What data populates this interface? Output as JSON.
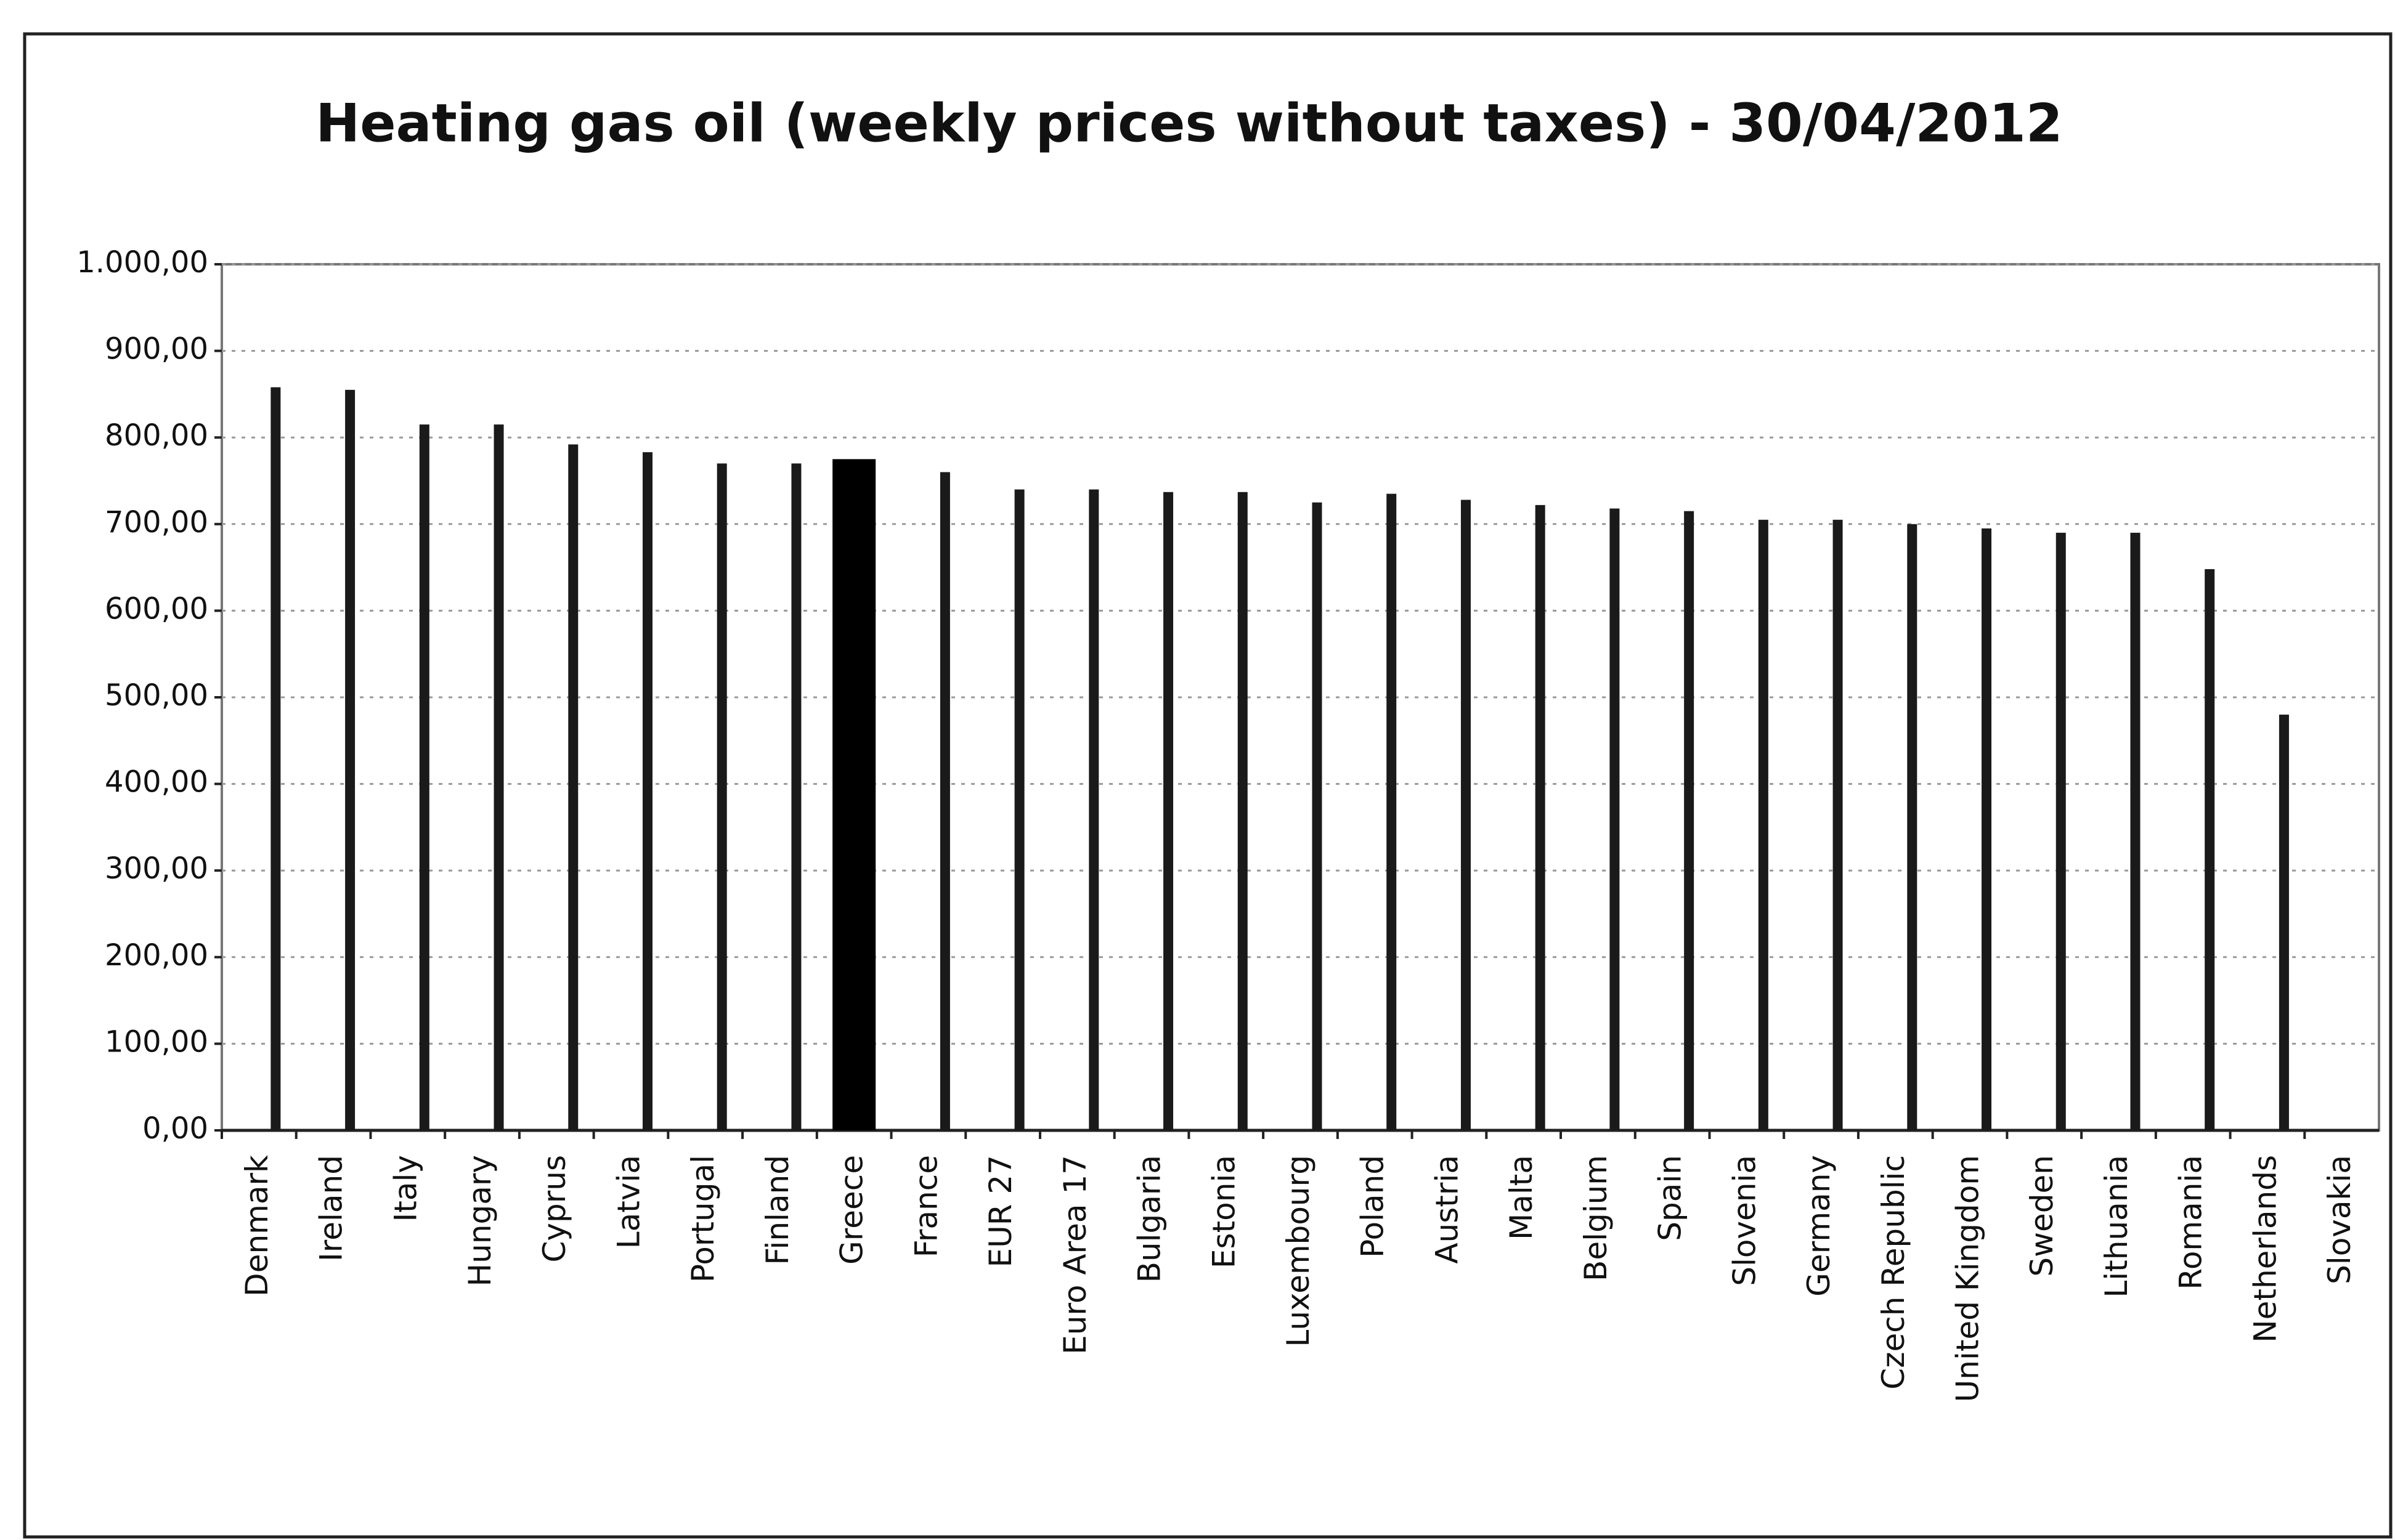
{
  "chart_data": {
    "type": "bar",
    "title": "Heating gas oil (weekly prices without taxes) - 30/04/2012",
    "categories": [
      "Denmark",
      "Ireland",
      "Italy",
      "Hungary",
      "Cyprus",
      "Latvia",
      "Portugal",
      "Finland",
      "Greece",
      "France",
      "EUR 27",
      "Euro Area 17",
      "Bulgaria",
      "Estonia",
      "Luxembourg",
      "Poland",
      "Austria",
      "Malta",
      "Belgium",
      "Spain",
      "Slovenia",
      "Germany",
      "Czech Republic",
      "United Kingdom",
      "Sweden",
      "Lithuania",
      "Romania",
      "Netherlands",
      "Slovakia"
    ],
    "values": [
      858,
      855,
      815,
      815,
      792,
      783,
      770,
      770,
      775,
      760,
      740,
      740,
      737,
      737,
      725,
      735,
      728,
      722,
      718,
      715,
      705,
      705,
      700,
      695,
      690,
      690,
      648,
      480,
      null
    ],
    "color": "#1a1a1a",
    "colors": [
      "#1a1a1a",
      "#1a1a1a",
      "#1a1a1a",
      "#1a1a1a",
      "#1a1a1a",
      "#1a1a1a",
      "#1a1a1a",
      "#1a1a1a",
      "#000000",
      "#1a1a1a",
      "#1a1a1a",
      "#1a1a1a",
      "#1a1a1a",
      "#1a1a1a",
      "#1a1a1a",
      "#1a1a1a",
      "#1a1a1a",
      "#1a1a1a",
      "#1a1a1a",
      "#1a1a1a",
      "#1a1a1a",
      "#1a1a1a",
      "#1a1a1a",
      "#1a1a1a",
      "#1a1a1a",
      "#1a1a1a",
      "#1a1a1a",
      "#1a1a1a",
      "#1a1a1a"
    ],
    "ylim": [
      0,
      1000
    ],
    "yticks": [
      {
        "value": 0,
        "label": "0,00"
      },
      {
        "value": 100,
        "label": "100,00"
      },
      {
        "value": 200,
        "label": "200,00"
      },
      {
        "value": 300,
        "label": "300,00"
      },
      {
        "value": 400,
        "label": "400,00"
      },
      {
        "value": 500,
        "label": "500,00"
      },
      {
        "value": 600,
        "label": "600,00"
      },
      {
        "value": 700,
        "label": "700,00"
      },
      {
        "value": 800,
        "label": "800,00"
      },
      {
        "value": 900,
        "label": "900,00"
      },
      {
        "value": 1000,
        "label": "1.000,00"
      }
    ],
    "grid": true
  }
}
